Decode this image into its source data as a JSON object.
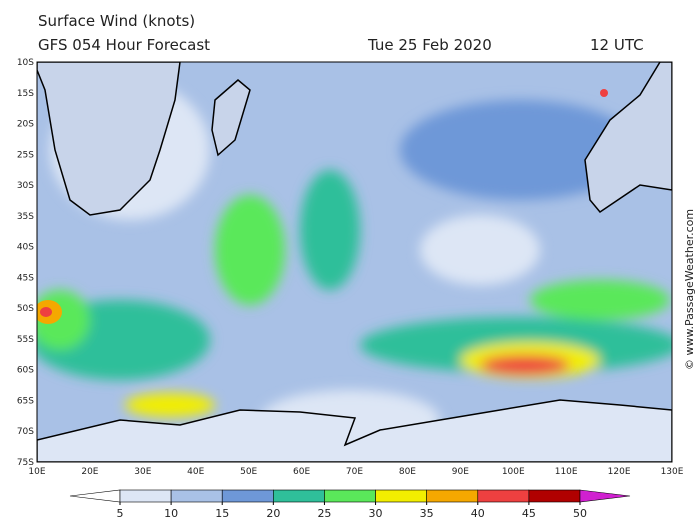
{
  "header": {
    "title": "Surface Wind (knots)",
    "forecast": "GFS 054 Hour Forecast",
    "date": "Tue 25 Feb 2020",
    "time": "12 UTC"
  },
  "map": {
    "lat_labels": [
      "10S",
      "15S",
      "20S",
      "25S",
      "30S",
      "35S",
      "40S",
      "45S",
      "50S",
      "55S",
      "60S",
      "65S",
      "70S",
      "75S"
    ],
    "lon_labels": [
      "10E",
      "20E",
      "30E",
      "40E",
      "50E",
      "60E",
      "70E",
      "80E",
      "90E",
      "100E",
      "110E",
      "120E",
      "130E"
    ]
  },
  "colorbar": {
    "ticks": [
      5,
      10,
      15,
      20,
      25,
      30,
      35,
      40,
      45,
      50
    ],
    "colors": [
      "#ffffff",
      "#dde6f5",
      "#a9c1e6",
      "#6e98d8",
      "#2fbf9a",
      "#5ae85a",
      "#f2ee00",
      "#f5a800",
      "#ee4040",
      "#b00000",
      "#d020d0"
    ]
  },
  "credit": "© www.PassageWeather.com"
}
